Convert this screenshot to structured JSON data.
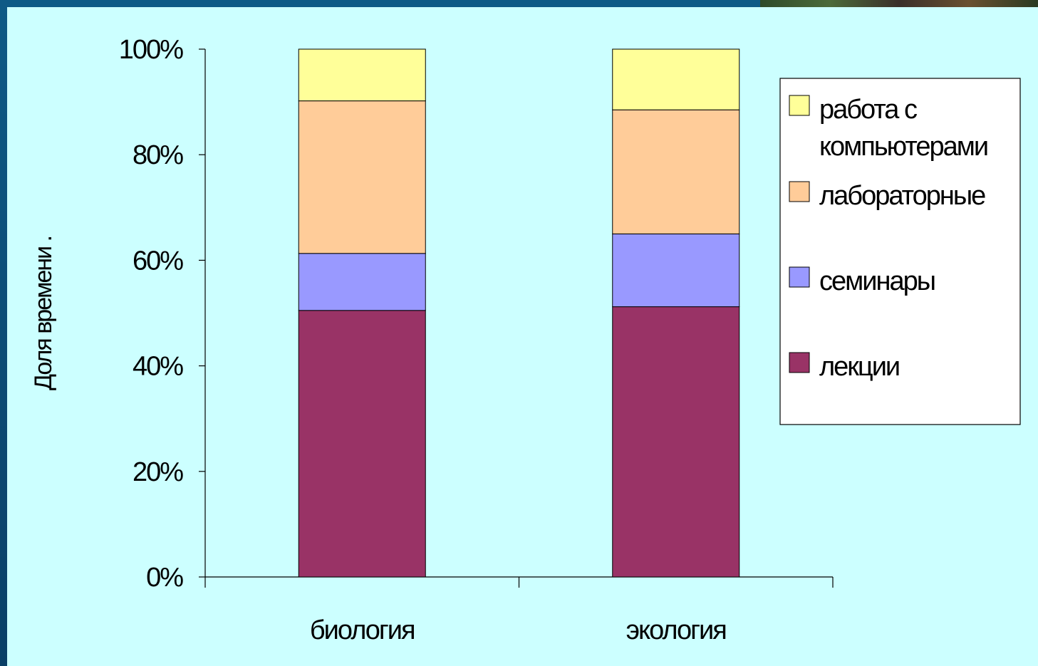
{
  "chart_data": {
    "type": "bar",
    "stacked": true,
    "percent": true,
    "categories": [
      "биология",
      "экология"
    ],
    "series": [
      {
        "name": "лекции",
        "color": "#993366",
        "values": [
          50.5,
          51.2
        ]
      },
      {
        "name": "семинары",
        "color": "#9999ff",
        "values": [
          10.8,
          13.8
        ]
      },
      {
        "name": "лабораторные",
        "color": "#ffcc99",
        "values": [
          28.9,
          23.5
        ]
      },
      {
        "name": "работа с компьютерами",
        "color": "#ffff99",
        "values": [
          9.8,
          11.5
        ]
      }
    ],
    "ylabel": "Доля времени     .",
    "ylim": [
      0,
      100
    ],
    "yticks": [
      "0%",
      "20%",
      "40%",
      "60%",
      "80%",
      "100%"
    ],
    "grid": false,
    "legend": "right",
    "legend_lines": [
      [
        "работа с",
        "компьютерами"
      ],
      [
        "лабораторные"
      ],
      [
        "семинары"
      ],
      [
        "лекции"
      ]
    ],
    "background": "#ccffff"
  }
}
